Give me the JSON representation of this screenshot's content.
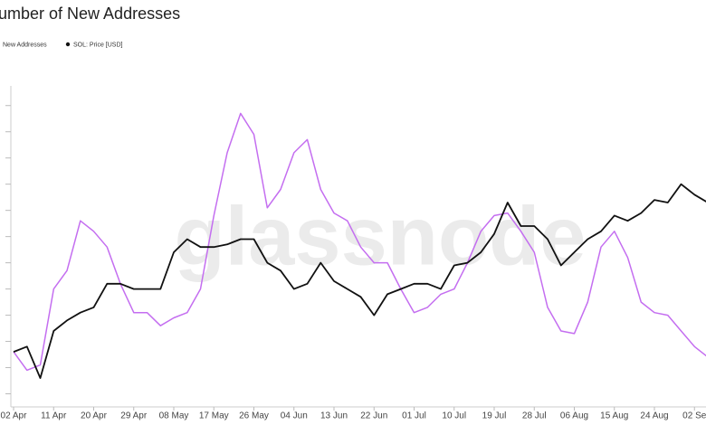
{
  "chart_data": {
    "type": "line",
    "title": "umber of New Addresses",
    "watermark": "glassnode",
    "categories": [
      "02 Apr",
      null,
      null,
      "11 Apr",
      null,
      null,
      "20 Apr",
      null,
      null,
      "29 Apr",
      null,
      null,
      "08 May",
      null,
      null,
      "17 May",
      null,
      null,
      "26 May",
      null,
      null,
      "04 Jun",
      null,
      null,
      "13 Jun",
      null,
      null,
      "22 Jun",
      null,
      null,
      "01 Jul",
      null,
      null,
      "10 Jul",
      null,
      null,
      "19 Jul",
      null,
      null,
      "28 Jul",
      null,
      null,
      "06 Aug",
      null,
      null,
      "15 Aug",
      null,
      null,
      "24 Aug",
      null,
      null,
      "02 Se",
      null
    ],
    "series": [
      {
        "name": "New Addresses",
        "color": "#c46ef0",
        "values": [
          1.6,
          0.9,
          1.1,
          4.0,
          4.7,
          6.6,
          6.2,
          5.6,
          4.2,
          3.1,
          3.1,
          2.6,
          2.9,
          3.1,
          4.0,
          6.8,
          9.2,
          10.7,
          9.9,
          7.1,
          7.8,
          9.2,
          9.7,
          7.8,
          6.9,
          6.6,
          5.6,
          5.0,
          5.0,
          4.0,
          3.1,
          3.3,
          3.8,
          4.0,
          5.0,
          6.2,
          6.8,
          6.9,
          6.2,
          5.4,
          3.3,
          2.4,
          2.3,
          3.5,
          5.6,
          6.2,
          5.2,
          3.5,
          3.1,
          3.0,
          2.4,
          1.8,
          1.4
        ]
      },
      {
        "name": "SOL: Price [USD]",
        "color": "#111111",
        "values": [
          1.6,
          1.8,
          0.6,
          2.4,
          2.8,
          3.1,
          3.3,
          4.2,
          4.2,
          4.0,
          4.0,
          4.0,
          5.4,
          5.9,
          5.6,
          5.6,
          5.7,
          5.9,
          5.9,
          5.0,
          4.7,
          4.0,
          4.2,
          5.0,
          4.3,
          4.0,
          3.7,
          3.0,
          3.8,
          4.0,
          4.2,
          4.2,
          4.0,
          4.9,
          5.0,
          5.4,
          6.1,
          7.3,
          6.4,
          6.4,
          5.9,
          4.9,
          5.4,
          5.9,
          6.2,
          6.8,
          6.6,
          6.9,
          7.4,
          7.3,
          8.0,
          7.6,
          7.3
        ]
      }
    ],
    "ylim": [
      -0.5,
      11.75
    ],
    "yticks": [
      0,
      1,
      2,
      3,
      4,
      5,
      6,
      7,
      8,
      9,
      10,
      11
    ]
  }
}
